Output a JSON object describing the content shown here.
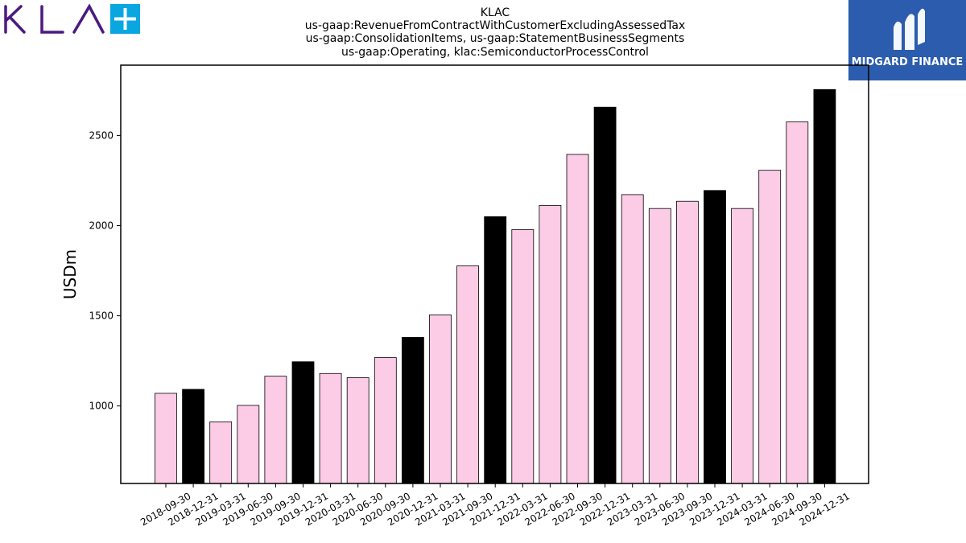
{
  "chart_data": {
    "type": "bar",
    "title_lines": [
      "KLAC",
      "us-gaap:RevenueFromContractWithCustomerExcludingAssessedTax",
      "us-gaap:ConsolidationItems, us-gaap:StatementBusinessSegments",
      "us-gaap:Operating, klac:SemiconductorProcessControl"
    ],
    "ylabel": "USDm",
    "xlabel": "",
    "ylim": [
      570,
      2890
    ],
    "yticks": [
      1000,
      1500,
      2000,
      2500
    ],
    "categories": [
      "2018-09-30",
      "2018-12-31",
      "2019-03-31",
      "2019-06-30",
      "2019-09-30",
      "2019-12-31",
      "2020-03-31",
      "2020-06-30",
      "2020-09-30",
      "2020-12-31",
      "2021-03-31",
      "2021-09-30",
      "2021-12-31",
      "2022-03-31",
      "2022-06-30",
      "2022-09-30",
      "2022-12-31",
      "2023-03-31",
      "2023-06-30",
      "2023-09-30",
      "2023-12-31",
      "2024-03-31",
      "2024-06-30",
      "2024-09-30",
      "2024-12-31"
    ],
    "values": [
      1070,
      1092,
      912,
      1003,
      1165,
      1245,
      1180,
      1157,
      1268,
      1380,
      1505,
      1777,
      2050,
      1978,
      2112,
      2395,
      2657,
      2172,
      2095,
      2135,
      2195,
      2095,
      2307,
      2575,
      2755
    ],
    "highlight": [
      false,
      true,
      false,
      false,
      false,
      true,
      false,
      false,
      false,
      true,
      false,
      false,
      true,
      false,
      false,
      false,
      true,
      false,
      false,
      false,
      true,
      false,
      false,
      false,
      true
    ],
    "colors": {
      "normal": "#fccbe6",
      "highlight": "#000000",
      "edge": "#000000"
    },
    "grid": false
  },
  "logos": {
    "klac_icon": "kla-logo",
    "midgard_icon": "midgard-logo",
    "midgard_text": "MIDGARD FINANCE",
    "midgard_bg": "#2b5cad",
    "klac_color": "#4b1a7e",
    "klac_plus_color": "#0aa6e0"
  }
}
